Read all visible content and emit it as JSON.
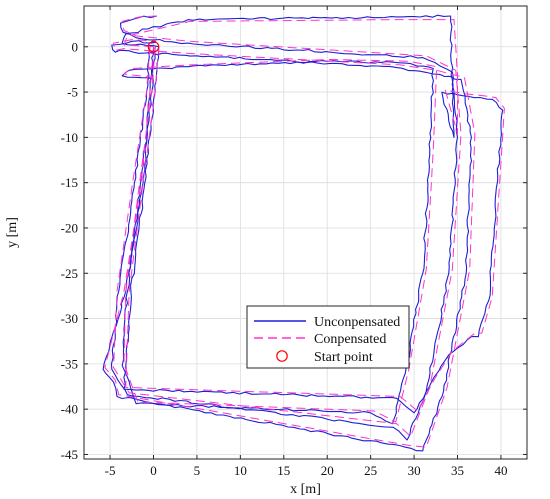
{
  "chart_data": {
    "type": "line",
    "title": "",
    "xlabel": "x [m]",
    "ylabel": "y [m]",
    "xlim": [
      -8,
      43
    ],
    "ylim": [
      -45.5,
      4.5
    ],
    "xticks": [
      -5,
      0,
      5,
      10,
      15,
      20,
      25,
      30,
      35,
      40
    ],
    "yticks": [
      0,
      -5,
      -10,
      -15,
      -20,
      -25,
      -30,
      -35,
      -40,
      -45
    ],
    "grid": true,
    "legend": {
      "placement": "lower-center-right"
    },
    "colors": {
      "unconpensated": "#1f1fd6",
      "compensated": "#ff33cc",
      "start": "#ff0000"
    },
    "series": [
      {
        "name": "Unconpensated",
        "style": "solid",
        "loops": [
          {
            "x": [
              0,
              -0.4,
              -1.2,
              -3.2,
              -5.8,
              -4.6,
              -4.2,
              29,
              31,
              33.4,
              36,
              36.6,
              35.4,
              32.2,
              28,
              5,
              -1,
              -3.5,
              -4.4,
              -4.8,
              -2.5,
              0.3
            ],
            "y": [
              0,
              -5,
              -15,
              -27,
              -35.6,
              -37,
              -38.6,
              -44.2,
              -44.6,
              -38,
              -25,
              -10,
              -3.6,
              -3,
              -2.3,
              -1,
              -0.7,
              -0.4,
              -0.6,
              0.2,
              0.6,
              0.5
            ]
          },
          {
            "x": [
              -0.4,
              -0.8,
              -2.2,
              -4.0,
              -4.8,
              -3.0,
              27.6,
              29.2,
              31.4,
              34,
              35,
              34.4,
              31,
              4,
              -2,
              -3.5,
              -3.8,
              -1.8,
              0.4
            ],
            "y": [
              0,
              -5,
              -15,
              -27,
              -35.6,
              -38.4,
              -42,
              -43.4,
              -38,
              -25,
              -10,
              -2.8,
              -1.2,
              0.4,
              1.0,
              1.6,
              2.6,
              3.2,
              3.4
            ]
          },
          {
            "x": [
              0.2,
              -0.2,
              -1.5,
              -3.0,
              -3.6,
              -2.0,
              25,
              27.5,
              29,
              31,
              31.8,
              32.2,
              29,
              20,
              4,
              -2.8,
              -3.6,
              0
            ],
            "y": [
              0,
              -5,
              -15,
              -27,
              -35.2,
              -39.4,
              -40.4,
              -41.6,
              -36,
              -25,
              -12,
              -2.4,
              -1.8,
              -1.6,
              -2.2,
              -2.6,
              -3.2,
              -3.6
            ]
          },
          {
            "x": [
              0.6,
              0.2,
              -1.0,
              -2.6,
              -3.4,
              28,
              30,
              32,
              34,
              36.6,
              37.4,
              38.6,
              40.2,
              39,
              37.6,
              35.6,
              33.2,
              34.6,
              34.4,
              34.2,
              28,
              4,
              -3.2,
              -3.6,
              0.6
            ],
            "y": [
              0,
              -5,
              -15,
              -27,
              -37.8,
              -38.8,
              -40.4,
              -37,
              -34,
              -32,
              -32,
              -28,
              -7,
              -5.8,
              -5.6,
              -5.4,
              -5,
              -10,
              -3.6,
              3.4,
              3.3,
              3.0,
              1.4,
              0.4,
              0
            ]
          }
        ]
      },
      {
        "name": "Conpensated",
        "style": "dashed",
        "loops": [
          {
            "x": [
              0,
              -0.4,
              -1.4,
              -3.4,
              -5.6,
              -4.4,
              -4.0,
              29.4,
              31.4,
              33.8,
              36.4,
              37,
              35.8,
              32.6,
              28.4,
              5.2,
              -1,
              -3.4,
              -4.4,
              -4.6,
              -2.4,
              0.3
            ],
            "y": [
              0,
              -5,
              -15,
              -27,
              -35.4,
              -36.8,
              -38.4,
              -44,
              -44.2,
              -37.6,
              -24.6,
              -9.6,
              -3.4,
              -2.6,
              -2.0,
              -0.8,
              -0.4,
              -0.2,
              -0.4,
              0.4,
              0.8,
              0.6
            ]
          },
          {
            "x": [
              -0.4,
              -0.8,
              -2.4,
              -4.2,
              -4.6,
              -2.8,
              28,
              29.6,
              31.8,
              34.4,
              35.4,
              34.8,
              31.4,
              4.2,
              -2,
              -3.4,
              -3.6,
              -1.6,
              0.4
            ],
            "y": [
              0,
              -5,
              -15,
              -27,
              -35.4,
              -38.2,
              -41.6,
              -43,
              -37.6,
              -24.6,
              -9.6,
              -2.6,
              -1,
              0.6,
              1.2,
              1.8,
              2.8,
              3.3,
              3.4
            ]
          },
          {
            "x": [
              0.2,
              -0.2,
              -1.6,
              -3.2,
              -3.4,
              -1.8,
              25.4,
              27.9,
              29.4,
              31.4,
              32.2,
              32.6,
              29.4,
              20.4,
              4.2,
              -2.6,
              -3.4,
              0
            ],
            "y": [
              0,
              -5,
              -15,
              -27,
              -35,
              -39.2,
              -40.2,
              -41.4,
              -35.6,
              -24.6,
              -11.6,
              -2.2,
              -1.6,
              -1.4,
              -2.0,
              -2.4,
              -3.0,
              -3.4
            ]
          },
          {
            "x": [
              0.6,
              0.2,
              -1.2,
              -2.8,
              -3.2,
              28.4,
              30.4,
              32.4,
              34.4,
              37,
              37.8,
              39,
              40.4,
              39.4,
              38,
              36,
              33.6,
              35,
              35,
              34.6,
              28.4,
              4.2,
              -3.0,
              -3.4,
              0.6
            ],
            "y": [
              0,
              -5,
              -15,
              -27,
              -37.6,
              -38.6,
              -40.2,
              -36.6,
              -33.6,
              -31.6,
              -31.6,
              -27.6,
              -6.8,
              -5.6,
              -5.4,
              -5.2,
              -4.8,
              -9.6,
              -3.2,
              3.0,
              3.0,
              2.8,
              1.2,
              0.2,
              0
            ]
          }
        ]
      }
    ],
    "start_point": {
      "name": "Start point",
      "x": 0,
      "y": 0
    }
  }
}
